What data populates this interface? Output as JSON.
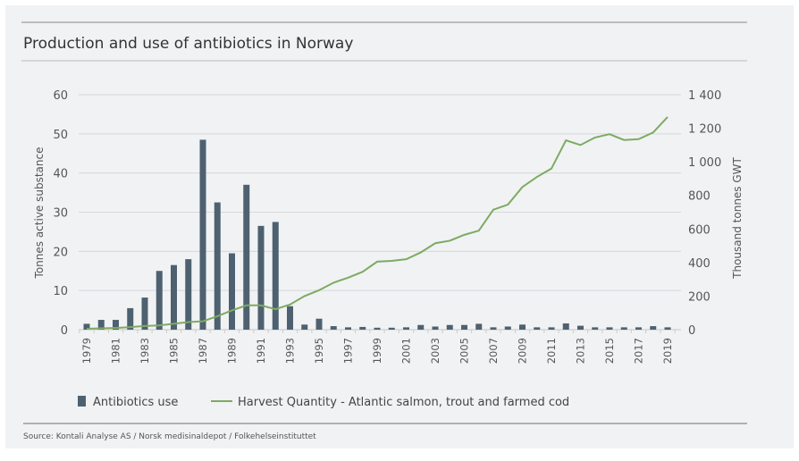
{
  "chart_data": {
    "type": "bar+line",
    "title": "Production and use of antibiotics in Norway",
    "source": "Source: Kontali Analyse AS / Norsk medisinaldepot / Folkehelseinstituttet",
    "ylabel_left": "Tonnes active substance",
    "ylabel_right": "Thousand tonnes GWT",
    "ylim_left": [
      0,
      60
    ],
    "ylim_right": [
      0,
      1400
    ],
    "yticks_left": [
      "0",
      "10",
      "20",
      "30",
      "40",
      "50",
      "60"
    ],
    "yticks_right": [
      "0",
      "200",
      "400",
      "600",
      "800",
      "1 000",
      "1 200",
      "1 400"
    ],
    "grid": true,
    "legend_position": "bottom",
    "x": [
      1979,
      1980,
      1981,
      1982,
      1983,
      1984,
      1985,
      1986,
      1987,
      1988,
      1989,
      1990,
      1991,
      1992,
      1993,
      1994,
      1995,
      1996,
      1997,
      1998,
      1999,
      2000,
      2001,
      2002,
      2003,
      2004,
      2005,
      2006,
      2007,
      2008,
      2009,
      2010,
      2011,
      2012,
      2013,
      2014,
      2015,
      2016,
      2017,
      2018,
      2019
    ],
    "xtick_labels": [
      "1979",
      "1981",
      "1983",
      "1985",
      "1987",
      "1989",
      "1991",
      "1993",
      "1995",
      "1997",
      "1999",
      "2001",
      "2003",
      "2005",
      "2007",
      "2009",
      "2011",
      "2013",
      "2015",
      "2017",
      "2019"
    ],
    "series": [
      {
        "name": "Antibiotics use",
        "type": "bar",
        "axis": "left",
        "color": "#4e6170",
        "values": [
          1.5,
          2.5,
          2.5,
          5.5,
          8.2,
          15,
          16.5,
          18,
          48.5,
          32.5,
          19.5,
          37,
          26.5,
          27.5,
          6,
          1.3,
          2.8,
          0.9,
          0.6,
          0.7,
          0.5,
          0.5,
          0.6,
          1.2,
          0.8,
          1.2,
          1.2,
          1.5,
          0.6,
          0.8,
          1.3,
          0.6,
          0.6,
          1.6,
          1.0,
          0.6,
          0.6,
          0.6,
          0.6,
          0.9,
          0.6
        ]
      },
      {
        "name": "Harvest Quantity - Atlantic salmon, trout and farmed cod",
        "type": "line",
        "axis": "right",
        "color": "#7dab62",
        "values": [
          5,
          8,
          10,
          15,
          22,
          25,
          35,
          45,
          50,
          80,
          115,
          145,
          145,
          122,
          150,
          200,
          235,
          280,
          310,
          345,
          405,
          410,
          420,
          460,
          515,
          530,
          565,
          590,
          715,
          745,
          850,
          910,
          960,
          1128,
          1100,
          1145,
          1165,
          1130,
          1135,
          1175,
          1267
        ]
      }
    ]
  }
}
